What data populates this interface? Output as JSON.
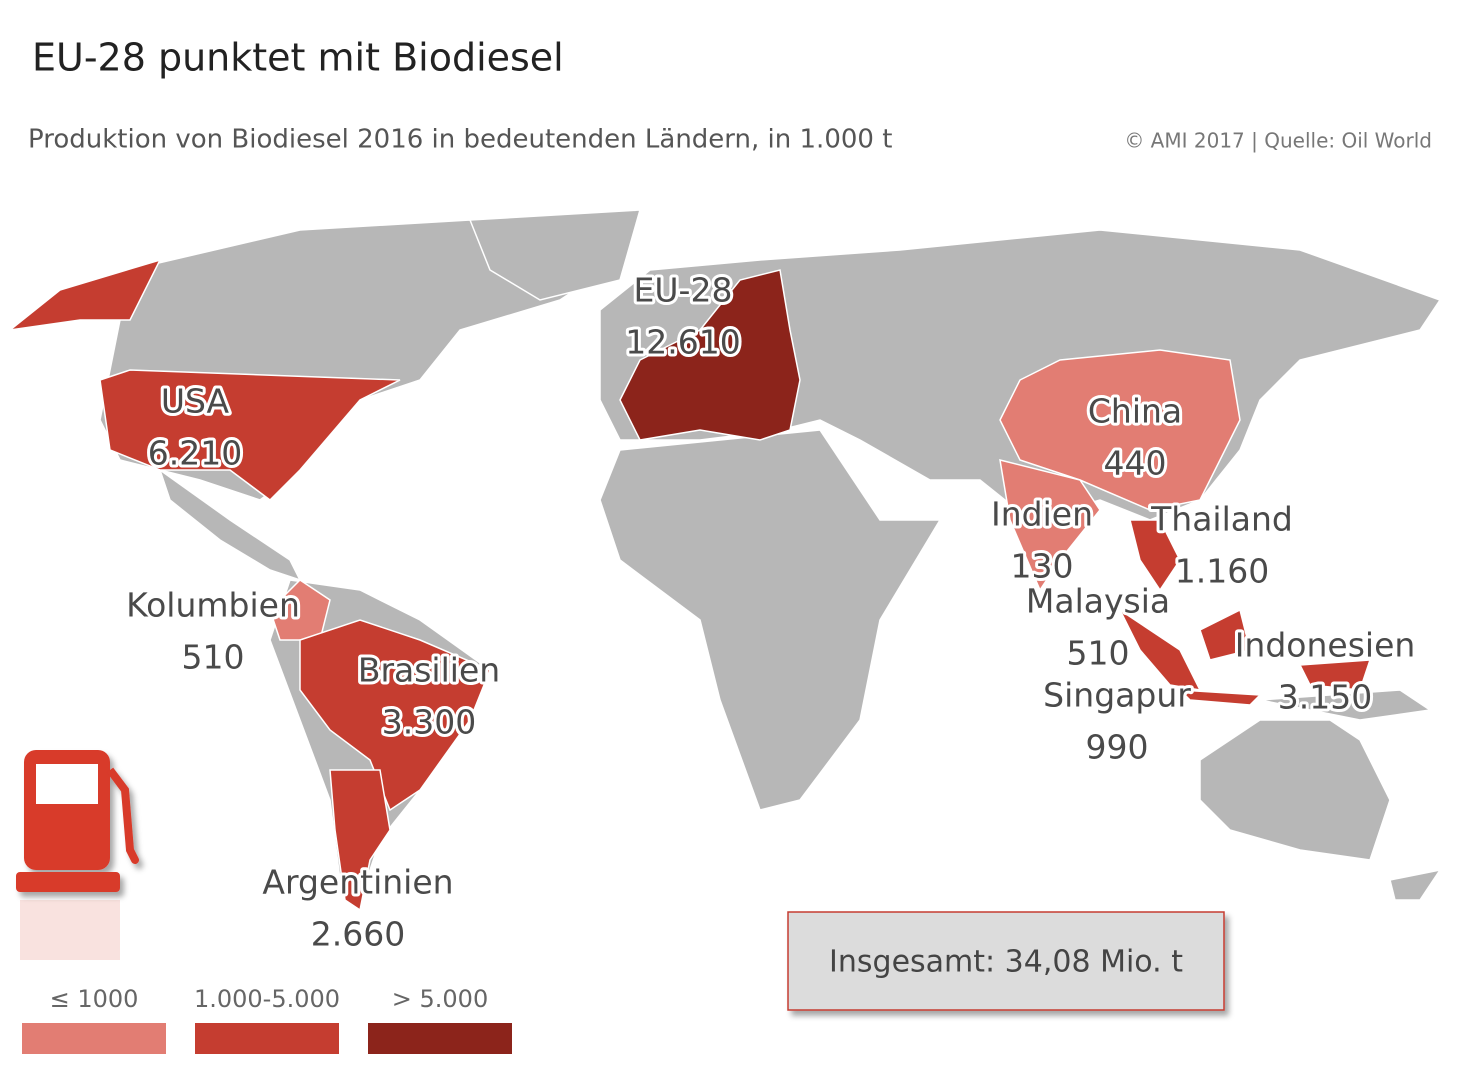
{
  "header": {
    "title": "EU-28 punktet mit Biodiesel",
    "subtitle": "Produktion von Biodiesel 2016 in bedeutenden Ländern, in 1.000 t",
    "source": "© AMI 2017 | Quelle: Oil World"
  },
  "labels": [
    {
      "name": "USA",
      "value": "6.210"
    },
    {
      "name": "EU-28",
      "value": "12.610"
    },
    {
      "name": "China",
      "value": "440"
    },
    {
      "name": "Indien",
      "value": "130"
    },
    {
      "name": "Thailand",
      "value": "1.160"
    },
    {
      "name": "Malaysia",
      "value": "510"
    },
    {
      "name": "Indonesien",
      "value": "3.150"
    },
    {
      "name": "Singapur",
      "value": "990"
    },
    {
      "name": "Kolumbien",
      "value": "510"
    },
    {
      "name": "Brasilien",
      "value": "3.300"
    },
    {
      "name": "Argentinien",
      "value": "2.660"
    }
  ],
  "legend": [
    {
      "label": "≤ 1000",
      "color": "#e27d73"
    },
    {
      "label": "1.000-5.000",
      "color": "#c53d30"
    },
    {
      "label": "> 5.000",
      "color": "#8c241b"
    }
  ],
  "total": "Insgesamt: 34,08 Mio. t"
}
